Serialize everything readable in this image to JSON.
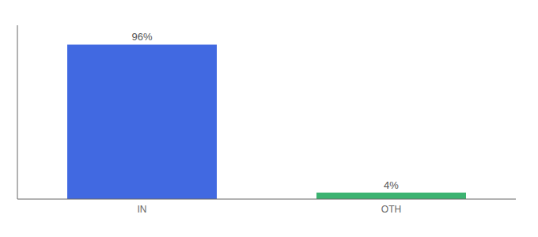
{
  "chart_data": {
    "type": "bar",
    "categories": [
      "IN",
      "OTH"
    ],
    "values": [
      96,
      4
    ],
    "value_labels": [
      "96%",
      "4%"
    ],
    "colors": [
      "#4169E1",
      "#3CB371"
    ],
    "ylim": [
      0,
      108
    ],
    "data_labels": true,
    "tick_labels": "x",
    "grid": false
  }
}
